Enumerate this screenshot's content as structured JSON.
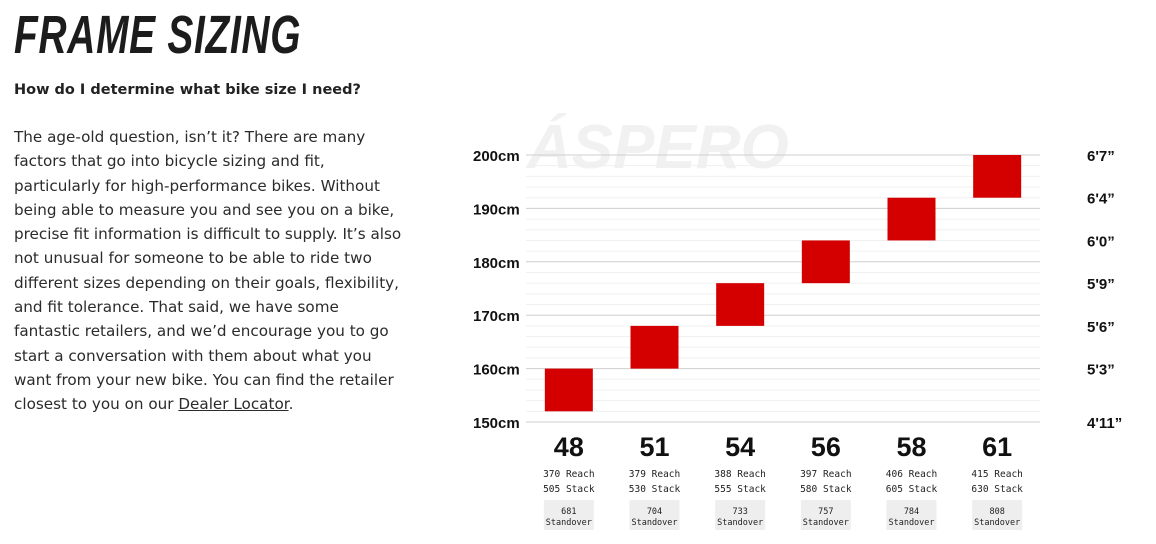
{
  "header": {
    "title": "FRAME SIZING",
    "subtitle": "How do I determine what bike size I need?"
  },
  "body": {
    "paragraph": "The age-old question, isn’t it? There are many factors that go into bicycle sizing and fit, particularly for high-performance bikes. Without being able to measure you and see you on a bike, precise fit information is difficult to supply. It’s also not unusual for someone to be able to ride two different sizes depending on their goals, flexibility, and fit tolerance. That said, we have some fantastic retailers, and we’d encourage you to go start a conversation with them about what you want from your new bike. You can find the retailer closest to you on our ",
    "link_text": "Dealer Locator",
    "trailing": "."
  },
  "colors": {
    "bar": "#d40000",
    "gridline": "#cfcfcf",
    "minor_gridline": "#f0f0f0",
    "standover_bg": "#eeeeee"
  },
  "chart_data": {
    "type": "bar",
    "watermark": "ÁSPERO",
    "y_unit": "cm",
    "ylim": [
      150,
      200
    ],
    "y_ticks": [
      "200cm",
      "190cm",
      "180cm",
      "170cm",
      "160cm",
      "150cm"
    ],
    "y_tick_values": [
      200,
      190,
      180,
      170,
      160,
      150
    ],
    "right_ticks": [
      "6'7”",
      "6'4”",
      "6'0”",
      "5'9”",
      "5'6”",
      "5'3”",
      "4'11”"
    ],
    "right_tick_values": [
      200,
      192,
      184,
      176,
      168,
      160,
      150
    ],
    "categories": [
      "48",
      "51",
      "54",
      "56",
      "58",
      "61"
    ],
    "height_ranges": [
      [
        152,
        160
      ],
      [
        160,
        168
      ],
      [
        168,
        176
      ],
      [
        176,
        184
      ],
      [
        184,
        192
      ],
      [
        192,
        200
      ]
    ],
    "reach": [
      "370 Reach",
      "379 Reach",
      "388 Reach",
      "397 Reach",
      "406 Reach",
      "415 Reach"
    ],
    "stack": [
      "505 Stack",
      "530 Stack",
      "555 Stack",
      "580 Stack",
      "605 Stack",
      "630 Stack"
    ],
    "standover": [
      "681",
      "704",
      "733",
      "757",
      "784",
      "808"
    ],
    "standover_label": "Standover"
  }
}
